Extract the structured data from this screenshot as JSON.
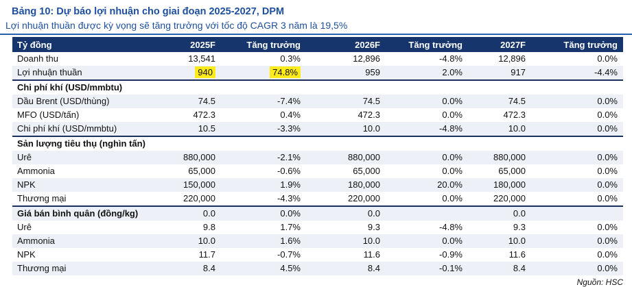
{
  "page": {
    "title": "Bảng 10: Dự báo lợi nhuận cho giai đoạn 2025-2027, DPM",
    "subtitle": "Lợi nhuận thuần được kỳ vọng sẽ tăng trưởng với tốc độ CAGR 3 năm là 19,5%",
    "source": "Nguồn: HSC"
  },
  "colors": {
    "title_blue": "#1d4f9e",
    "header_bg": "#16356d",
    "header_text": "#ffffff",
    "row_stripe": "#edf0f6",
    "section_line": "#1a2f5e",
    "underline_blue": "#2b5eae",
    "highlight_yellow": "#ffeb1a"
  },
  "table": {
    "columns": [
      "Tỷ đồng",
      "2025F",
      "Tăng trưởng",
      "2026F",
      "Tăng trưởng",
      "2027F",
      "Tăng trưởng"
    ],
    "rows": [
      {
        "type": "data",
        "label": "Doanh thu",
        "values": [
          "13,541",
          "0.3%",
          "12,896",
          "-4.8%",
          "12,896",
          "0.0%"
        ]
      },
      {
        "type": "data",
        "label": "Lợi nhuận thuần",
        "values": [
          "940",
          "74.8%",
          "959",
          "2.0%",
          "917",
          "-4.4%"
        ],
        "highlight": [
          0,
          1
        ],
        "section_end": true
      },
      {
        "type": "section",
        "label": "Chi phí khí (USD/mmbtu)",
        "values": [
          "",
          "",
          "",
          "",
          "",
          ""
        ]
      },
      {
        "type": "data",
        "label": "Dầu Brent (USD/thùng)",
        "values": [
          "74.5",
          "-7.4%",
          "74.5",
          "0.0%",
          "74.5",
          "0.0%"
        ]
      },
      {
        "type": "data",
        "label": "MFO (USD/tấn)",
        "values": [
          "472.3",
          "0.4%",
          "472.3",
          "0.0%",
          "472.3",
          "0.0%"
        ]
      },
      {
        "type": "data",
        "label": "Chi phí khí (USD/mmbtu)",
        "values": [
          "10.5",
          "-3.3%",
          "10.0",
          "-4.8%",
          "10.0",
          "0.0%"
        ],
        "section_end": true
      },
      {
        "type": "section",
        "label": "Sản lượng tiêu thụ (nghìn tấn)",
        "values": [
          "",
          "",
          "",
          "",
          "",
          ""
        ]
      },
      {
        "type": "data",
        "label": "Urê",
        "values": [
          "880,000",
          "-2.1%",
          "880,000",
          "0.0%",
          "880,000",
          "0.0%"
        ]
      },
      {
        "type": "data",
        "label": "Ammonia",
        "values": [
          "65,000",
          "-0.6%",
          "65,000",
          "0.0%",
          "65,000",
          "0.0%"
        ]
      },
      {
        "type": "data",
        "label": "NPK",
        "values": [
          "150,000",
          "1.9%",
          "180,000",
          "20.0%",
          "180,000",
          "0.0%"
        ]
      },
      {
        "type": "data",
        "label": "Thương mại",
        "values": [
          "220,000",
          "-4.3%",
          "220,000",
          "0.0%",
          "220,000",
          "0.0%"
        ],
        "section_end": true
      },
      {
        "type": "section",
        "label": "Giá bán bình quân (đồng/kg)",
        "values": [
          "0.0",
          "0.0%",
          "0.0",
          "",
          "0.0",
          ""
        ]
      },
      {
        "type": "data",
        "label": "Urê",
        "values": [
          "9.8",
          "1.7%",
          "9.3",
          "-4.8%",
          "9.3",
          "0.0%"
        ]
      },
      {
        "type": "data",
        "label": "Ammonia",
        "values": [
          "10.0",
          "1.6%",
          "10.0",
          "0.0%",
          "10.0",
          "0.0%"
        ]
      },
      {
        "type": "data",
        "label": "NPK",
        "values": [
          "11.7",
          "-0.7%",
          "11.6",
          "-0.9%",
          "11.6",
          "0.0%"
        ]
      },
      {
        "type": "data",
        "label": "Thương mại",
        "values": [
          "8.4",
          "4.5%",
          "8.4",
          "-0.1%",
          "8.4",
          "0.0%"
        ]
      }
    ]
  }
}
